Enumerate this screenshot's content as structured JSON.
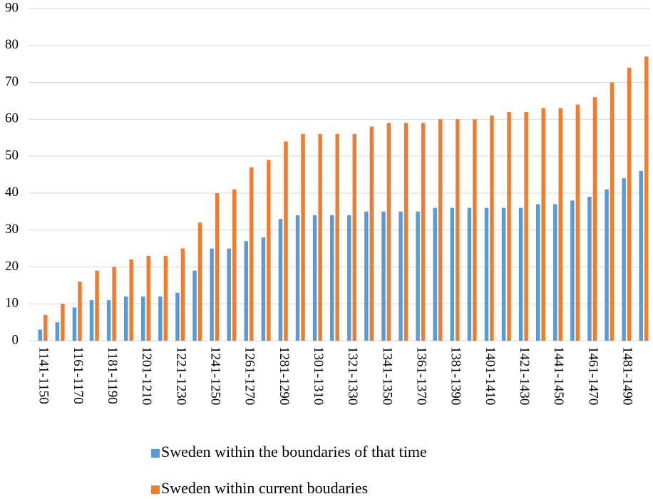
{
  "chart_data": {
    "type": "bar",
    "categories": [
      "1141-1150",
      null,
      "1161-1170",
      null,
      "1181-1190",
      null,
      "1201-1210",
      null,
      "1221-1230",
      null,
      "1241-1250",
      null,
      "1261-1270",
      null,
      "1281-1290",
      null,
      "1301-1310",
      null,
      "1321-1330",
      null,
      "1341-1350",
      null,
      "1361-1370",
      null,
      "1381-1390",
      null,
      "1401-1410",
      null,
      "1421-1430",
      null,
      "1441-1450",
      null,
      "1461-1470",
      null,
      "1481-1490",
      null
    ],
    "series": [
      {
        "name": "Sweden within the boundaries of that time",
        "color": "#5b9bd5",
        "values": [
          3,
          5,
          9,
          11,
          11,
          12,
          12,
          12,
          13,
          19,
          25,
          25,
          27,
          28,
          33,
          34,
          34,
          34,
          34,
          35,
          35,
          35,
          35,
          36,
          36,
          36,
          36,
          36,
          36,
          37,
          37,
          38,
          39,
          41,
          44,
          46
        ]
      },
      {
        "name": "Sweden within current boudaries",
        "color": "#ed7d31",
        "values": [
          7,
          10,
          16,
          19,
          20,
          22,
          23,
          23,
          25,
          32,
          40,
          41,
          47,
          49,
          54,
          56,
          56,
          56,
          56,
          58,
          59,
          59,
          59,
          60,
          60,
          60,
          61,
          62,
          62,
          63,
          63,
          64,
          66,
          70,
          74,
          77
        ]
      }
    ],
    "ylim": [
      0,
      90
    ],
    "yticks": [
      0,
      10,
      20,
      30,
      40,
      50,
      60,
      70,
      80,
      90
    ],
    "grid": true,
    "legend": "bottom"
  }
}
